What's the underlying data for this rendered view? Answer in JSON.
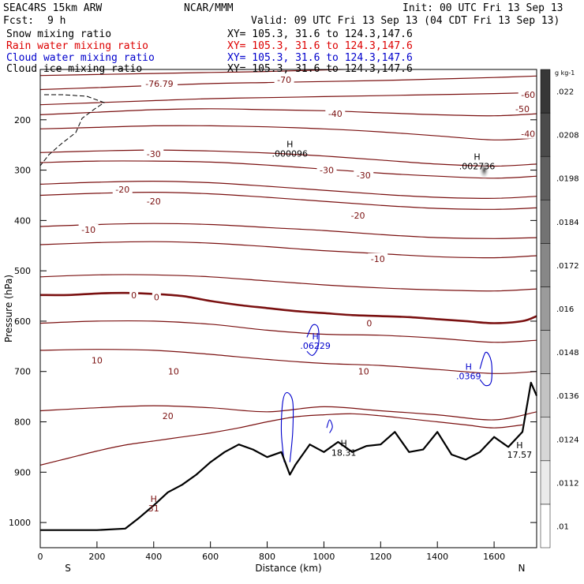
{
  "header": {
    "model": "SEAC4RS 15km ARW",
    "org": "NCAR/MMM",
    "init": "Init: 00 UTC Fri 13 Sep 13",
    "fcst_label": "Fcst:",
    "fcst_value": "9 h",
    "valid": "Valid: 09 UTC Fri 13 Sep 13 (04 CDT Fri 13 Sep 13)",
    "fields": [
      {
        "name": "Snow mixing ratio",
        "xy": "XY= 105.3, 31.6 to 124.3,147.6",
        "color": "#000000"
      },
      {
        "name": "Rain water mixing ratio",
        "xy": "XY= 105.3, 31.6 to 124.3,147.6",
        "color": "#dd0000"
      },
      {
        "name": "Cloud water mixing ratio",
        "xy": "XY= 105.3, 31.6 to 124.3,147.6",
        "color": "#0000cc"
      },
      {
        "name": "Cloud ice mixing ratio",
        "xy": "XY= 105.3, 31.6 to 124.3,147.6",
        "color": "#000000"
      }
    ]
  },
  "chart_data": {
    "type": "contour",
    "title": "",
    "xlabel": "Distance (km)",
    "ylabel": "Pressure (hPa)",
    "xlim": [
      0,
      1750
    ],
    "ylim": [
      1050,
      100
    ],
    "x_ticks": [
      0,
      200,
      400,
      600,
      800,
      1000,
      1200,
      1400,
      1600
    ],
    "y_ticks": [
      200,
      300,
      400,
      500,
      600,
      700,
      800,
      900,
      1000
    ],
    "endpoints": {
      "left": "S",
      "right": "N"
    },
    "colorbar": {
      "unit": "g kg-1",
      "labels": [
        ".01",
        ".0112",
        ".0124",
        ".0136",
        ".0148",
        ".016",
        ".0172",
        ".0184",
        ".0198",
        ".0208",
        ".022"
      ]
    },
    "temperature_contours": [
      {
        "value": -70,
        "points": [
          [
            0,
            112
          ],
          [
            200,
            110
          ],
          [
            400,
            108
          ],
          [
            600,
            106
          ],
          [
            800,
            104
          ],
          [
            1000,
            101
          ],
          [
            1200,
            98
          ],
          [
            1400,
            95
          ],
          [
            1600,
            92
          ],
          [
            1750,
            90
          ]
        ]
      },
      {
        "value": -60,
        "points": [
          [
            0,
            140
          ],
          [
            200,
            136
          ],
          [
            400,
            132
          ],
          [
            600,
            128
          ],
          [
            800,
            126
          ],
          [
            1000,
            124
          ],
          [
            1200,
            122
          ],
          [
            1400,
            119
          ],
          [
            1600,
            116
          ],
          [
            1750,
            113
          ]
        ]
      },
      {
        "value": -50,
        "points": [
          [
            0,
            170
          ],
          [
            200,
            166
          ],
          [
            400,
            162
          ],
          [
            600,
            158
          ],
          [
            800,
            156
          ],
          [
            1000,
            154
          ],
          [
            1200,
            152
          ],
          [
            1400,
            150
          ],
          [
            1600,
            148
          ],
          [
            1750,
            146
          ]
        ]
      },
      {
        "value": -40,
        "points": [
          [
            0,
            190
          ],
          [
            200,
            185
          ],
          [
            400,
            180
          ],
          [
            600,
            178
          ],
          [
            800,
            180
          ],
          [
            1000,
            182
          ],
          [
            1200,
            186
          ],
          [
            1400,
            190
          ],
          [
            1600,
            192
          ],
          [
            1750,
            188
          ]
        ]
      },
      {
        "value": -40,
        "points": [
          [
            0,
            218
          ],
          [
            200,
            215
          ],
          [
            400,
            212
          ],
          [
            600,
            212
          ],
          [
            800,
            214
          ],
          [
            1000,
            218
          ],
          [
            1200,
            224
          ],
          [
            1400,
            232
          ],
          [
            1600,
            240
          ],
          [
            1750,
            236
          ]
        ]
      },
      {
        "value": -30,
        "points": [
          [
            0,
            265
          ],
          [
            200,
            262
          ],
          [
            400,
            260
          ],
          [
            600,
            262
          ],
          [
            800,
            266
          ],
          [
            1000,
            272
          ],
          [
            1200,
            280
          ],
          [
            1400,
            288
          ],
          [
            1600,
            292
          ],
          [
            1750,
            288
          ]
        ]
      },
      {
        "value": -30,
        "points": [
          [
            0,
            285
          ],
          [
            200,
            282
          ],
          [
            400,
            282
          ],
          [
            600,
            284
          ],
          [
            800,
            290
          ],
          [
            1000,
            298
          ],
          [
            1200,
            306
          ],
          [
            1400,
            312
          ],
          [
            1600,
            316
          ],
          [
            1750,
            312
          ]
        ]
      },
      {
        "value": -20,
        "points": [
          [
            0,
            328
          ],
          [
            200,
            324
          ],
          [
            400,
            322
          ],
          [
            600,
            325
          ],
          [
            800,
            332
          ],
          [
            1000,
            340
          ],
          [
            1200,
            348
          ],
          [
            1400,
            354
          ],
          [
            1600,
            356
          ],
          [
            1750,
            352
          ]
        ]
      },
      {
        "value": -20,
        "points": [
          [
            0,
            350
          ],
          [
            200,
            346
          ],
          [
            400,
            344
          ],
          [
            600,
            347
          ],
          [
            800,
            354
          ],
          [
            1000,
            362
          ],
          [
            1200,
            370
          ],
          [
            1400,
            376
          ],
          [
            1600,
            378
          ],
          [
            1750,
            375
          ]
        ]
      },
      {
        "value": -10,
        "points": [
          [
            0,
            412
          ],
          [
            200,
            408
          ],
          [
            400,
            406
          ],
          [
            600,
            408
          ],
          [
            800,
            414
          ],
          [
            1000,
            420
          ],
          [
            1200,
            428
          ],
          [
            1400,
            434
          ],
          [
            1600,
            436
          ],
          [
            1750,
            434
          ]
        ]
      },
      {
        "value": -10,
        "points": [
          [
            0,
            448
          ],
          [
            200,
            444
          ],
          [
            400,
            442
          ],
          [
            600,
            445
          ],
          [
            800,
            452
          ],
          [
            1000,
            460
          ],
          [
            1200,
            466
          ],
          [
            1400,
            472
          ],
          [
            1600,
            474
          ],
          [
            1750,
            470
          ]
        ]
      },
      {
        "value": 0,
        "points": [
          [
            0,
            512
          ],
          [
            200,
            508
          ],
          [
            400,
            508
          ],
          [
            600,
            512
          ],
          [
            800,
            520
          ],
          [
            1000,
            528
          ],
          [
            1200,
            534
          ],
          [
            1400,
            538
          ],
          [
            1600,
            540
          ],
          [
            1750,
            536
          ]
        ]
      },
      {
        "value": 0,
        "points": [
          [
            0,
            548
          ],
          [
            100,
            548
          ],
          [
            200,
            545
          ],
          [
            300,
            544
          ],
          [
            400,
            546
          ],
          [
            500,
            550
          ],
          [
            600,
            560
          ],
          [
            700,
            568
          ],
          [
            800,
            574
          ],
          [
            900,
            580
          ],
          [
            1000,
            584
          ],
          [
            1100,
            588
          ],
          [
            1200,
            590
          ],
          [
            1300,
            592
          ],
          [
            1400,
            596
          ],
          [
            1500,
            600
          ],
          [
            1600,
            604
          ],
          [
            1700,
            600
          ],
          [
            1750,
            590
          ]
        ],
        "bold": true
      },
      {
        "value": 10,
        "points": [
          [
            0,
            604
          ],
          [
            200,
            600
          ],
          [
            400,
            600
          ],
          [
            600,
            606
          ],
          [
            800,
            618
          ],
          [
            1000,
            626
          ],
          [
            1200,
            628
          ],
          [
            1400,
            634
          ],
          [
            1600,
            642
          ],
          [
            1750,
            638
          ]
        ]
      },
      {
        "value": 10,
        "points": [
          [
            0,
            658
          ],
          [
            200,
            656
          ],
          [
            400,
            658
          ],
          [
            600,
            666
          ],
          [
            800,
            676
          ],
          [
            1000,
            684
          ],
          [
            1200,
            688
          ],
          [
            1400,
            696
          ],
          [
            1600,
            704
          ],
          [
            1750,
            700
          ]
        ]
      },
      {
        "value": 20,
        "points": [
          [
            0,
            778
          ],
          [
            200,
            772
          ],
          [
            400,
            768
          ],
          [
            600,
            772
          ],
          [
            800,
            780
          ],
          [
            1000,
            770
          ],
          [
            1200,
            778
          ],
          [
            1400,
            786
          ],
          [
            1600,
            796
          ],
          [
            1750,
            780
          ]
        ]
      },
      {
        "value": 20,
        "points": [
          [
            0,
            886
          ],
          [
            100,
            872
          ],
          [
            200,
            858
          ],
          [
            300,
            846
          ],
          [
            400,
            838
          ],
          [
            500,
            830
          ],
          [
            600,
            822
          ],
          [
            700,
            812
          ],
          [
            800,
            800
          ],
          [
            900,
            790
          ],
          [
            1000,
            786
          ],
          [
            1100,
            784
          ],
          [
            1200,
            788
          ],
          [
            1300,
            794
          ],
          [
            1400,
            800
          ],
          [
            1500,
            806
          ],
          [
            1600,
            812
          ],
          [
            1700,
            806
          ]
        ]
      }
    ],
    "temperature_labels": [
      {
        "text": "-76.79",
        "x": 420,
        "p": 128
      },
      {
        "text": "-70",
        "x": 860,
        "p": 120
      },
      {
        "text": "-60",
        "x": 1720,
        "p": 150
      },
      {
        "text": "-50",
        "x": 1700,
        "p": 178
      },
      {
        "text": "-40",
        "x": 1040,
        "p": 188
      },
      {
        "text": "-40",
        "x": 1720,
        "p": 228
      },
      {
        "text": "-30",
        "x": 400,
        "p": 268
      },
      {
        "text": "-30",
        "x": 1010,
        "p": 300
      },
      {
        "text": "-30",
        "x": 1140,
        "p": 310
      },
      {
        "text": "-20",
        "x": 290,
        "p": 338
      },
      {
        "text": "-20",
        "x": 400,
        "p": 362
      },
      {
        "text": "-20",
        "x": 1120,
        "p": 390
      },
      {
        "text": "-10",
        "x": 170,
        "p": 418
      },
      {
        "text": "-10",
        "x": 1190,
        "p": 476
      },
      {
        "text": "0",
        "x": 330,
        "p": 548
      },
      {
        "text": "0",
        "x": 410,
        "p": 552
      },
      {
        "text": "0",
        "x": 1160,
        "p": 604
      },
      {
        "text": "10",
        "x": 200,
        "p": 678
      },
      {
        "text": "10",
        "x": 470,
        "p": 700
      },
      {
        "text": "10",
        "x": 1140,
        "p": 700
      },
      {
        "text": "20",
        "x": 450,
        "p": 788
      }
    ],
    "terrain": [
      [
        0,
        1015
      ],
      [
        100,
        1015
      ],
      [
        200,
        1015
      ],
      [
        300,
        1012
      ],
      [
        350,
        990
      ],
      [
        400,
        966
      ],
      [
        450,
        940
      ],
      [
        500,
        925
      ],
      [
        550,
        905
      ],
      [
        600,
        880
      ],
      [
        650,
        860
      ],
      [
        700,
        845
      ],
      [
        750,
        855
      ],
      [
        800,
        870
      ],
      [
        850,
        860
      ],
      [
        880,
        905
      ],
      [
        900,
        885
      ],
      [
        950,
        845
      ],
      [
        1000,
        860
      ],
      [
        1050,
        840
      ],
      [
        1100,
        860
      ],
      [
        1150,
        848
      ],
      [
        1200,
        845
      ],
      [
        1250,
        820
      ],
      [
        1300,
        860
      ],
      [
        1350,
        855
      ],
      [
        1400,
        820
      ],
      [
        1450,
        865
      ],
      [
        1500,
        875
      ],
      [
        1550,
        860
      ],
      [
        1600,
        830
      ],
      [
        1650,
        850
      ],
      [
        1700,
        820
      ],
      [
        1730,
        722
      ],
      [
        1750,
        748
      ]
    ],
    "extrema": [
      {
        "label": "H",
        "value": ".000096",
        "x": 880,
        "p": 270
      },
      {
        "label": "H",
        "value": ".002736",
        "x": 1540,
        "p": 295
      },
      {
        "label": "H",
        "value": ".06229",
        "x": 970,
        "p": 652
      },
      {
        "label": "H",
        "value": ".0369",
        "x": 1510,
        "p": 712
      },
      {
        "label": "H",
        "value": "18.31",
        "x": 1070,
        "p": 864
      },
      {
        "label": "H",
        "value": "17.57",
        "x": 1690,
        "p": 868
      },
      {
        "label": "H",
        "value": "31",
        "x": 400,
        "p": 975
      }
    ],
    "cloud_water_contours": [
      [
        [
          860,
          880
        ],
        [
          850,
          820
        ],
        [
          855,
          760
        ],
        [
          870,
          742
        ],
        [
          890,
          760
        ],
        [
          890,
          820
        ],
        [
          880,
          880
        ]
      ],
      [
        [
          940,
          632
        ],
        [
          960,
          608
        ],
        [
          980,
          614
        ],
        [
          980,
          650
        ],
        [
          960,
          668
        ],
        [
          940,
          660
        ]
      ],
      [
        [
          1550,
          695
        ],
        [
          1570,
          662
        ],
        [
          1590,
          680
        ],
        [
          1590,
          720
        ],
        [
          1570,
          728
        ],
        [
          1550,
          716
        ]
      ],
      [
        [
          1010,
          812
        ],
        [
          1020,
          796
        ],
        [
          1030,
          810
        ],
        [
          1020,
          822
        ]
      ]
    ],
    "ice_patch": {
      "x": 1565,
      "p": 300
    }
  }
}
